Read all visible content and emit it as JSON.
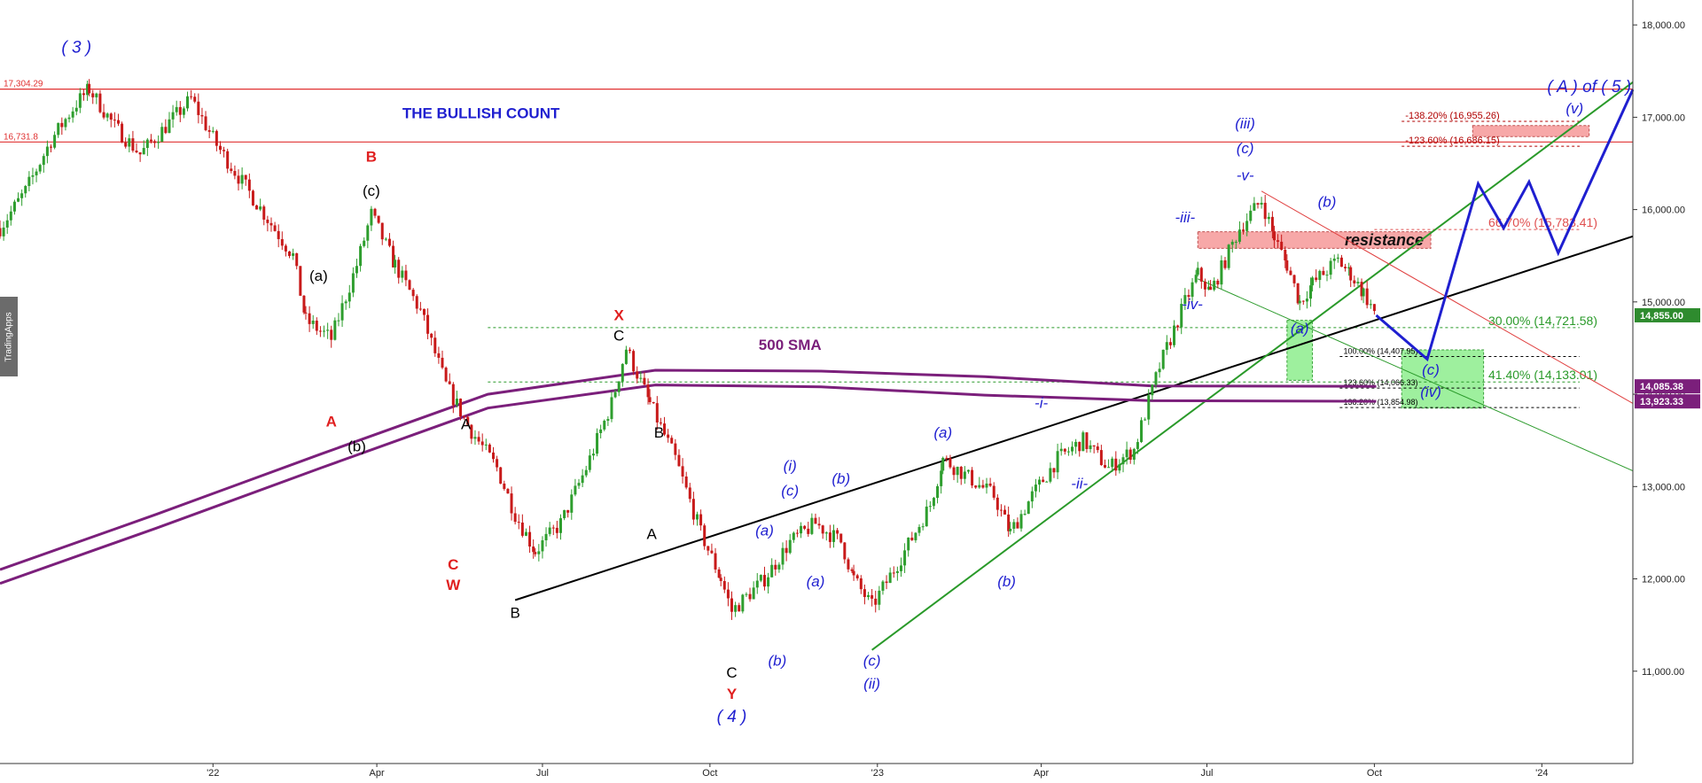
{
  "chart_data": {
    "type": "line",
    "title": "THE BULLISH COUNT",
    "watermark": "TradingApps",
    "xlabel": "",
    "ylabel": "",
    "x_ticks": [
      "'22",
      "Apr",
      "Jul",
      "Oct",
      "'23",
      "Apr",
      "Jul",
      "Oct",
      "'24"
    ],
    "x_tick_dates": [
      "2022-01-01",
      "2022-04-01",
      "2022-07-01",
      "2022-10-01",
      "2023-01-01",
      "2023-04-01",
      "2023-07-01",
      "2023-10-01",
      "2024-01-01"
    ],
    "xlim": [
      "2021-09-06",
      "2024-02-20"
    ],
    "y_ticks": [
      "11,000.00",
      "12,000.00",
      "13,000.00",
      "14,000.00",
      "15,000.00",
      "16,000.00",
      "17,000.00",
      "18,000.00"
    ],
    "ylim": [
      10000,
      18270
    ],
    "colors": {
      "up": "#2e9e2e",
      "down": "#c81a1a",
      "sma": "#7b1f7b",
      "wave_blue": "#1f1fd0",
      "wave_red": "#e02020",
      "wave_black": "#000000",
      "trend_green": "#2a9a2a",
      "resistance_fill": "#f7a8a8",
      "target_fill": "#9ef09e",
      "price_badge": "#2e8b2e",
      "sma_badge": "#7b1f7b"
    },
    "series": [
      {
        "name": "",
        "kind": "price",
        "points": [
          [
            "2021-09-06",
            15800
          ],
          [
            "2021-09-20",
            16200
          ],
          [
            "2021-10-04",
            16750
          ],
          [
            "2021-10-18",
            17150
          ],
          [
            "2021-10-25",
            17304
          ],
          [
            "2021-11-08",
            16900
          ],
          [
            "2021-11-22",
            16600
          ],
          [
            "2021-12-06",
            16900
          ],
          [
            "2021-12-20",
            17200
          ],
          [
            "2022-01-03",
            16700
          ],
          [
            "2022-01-17",
            16300
          ],
          [
            "2022-01-31",
            15900
          ],
          [
            "2022-02-14",
            15500
          ],
          [
            "2022-02-21",
            14800
          ],
          [
            "2022-03-07",
            14600
          ],
          [
            "2022-03-21",
            15400
          ],
          [
            "2022-03-29",
            15950
          ],
          [
            "2022-04-11",
            15400
          ],
          [
            "2022-04-25",
            14900
          ],
          [
            "2022-05-09",
            14100
          ],
          [
            "2022-05-23",
            13600
          ],
          [
            "2022-06-06",
            13200
          ],
          [
            "2022-06-16",
            12700
          ],
          [
            "2022-06-27",
            12300
          ],
          [
            "2022-07-11",
            12600
          ],
          [
            "2022-07-25",
            13200
          ],
          [
            "2022-08-08",
            13900
          ],
          [
            "2022-08-16",
            14500
          ],
          [
            "2022-08-29",
            13900
          ],
          [
            "2022-09-12",
            13300
          ],
          [
            "2022-09-26",
            12500
          ],
          [
            "2022-10-07",
            12000
          ],
          [
            "2022-10-13",
            11650
          ],
          [
            "2022-10-31",
            12000
          ],
          [
            "2022-11-14",
            12400
          ],
          [
            "2022-11-28",
            12600
          ],
          [
            "2022-12-12",
            12400
          ],
          [
            "2022-12-19",
            12000
          ],
          [
            "2022-12-29",
            11700
          ],
          [
            "2023-01-16",
            12300
          ],
          [
            "2023-01-30",
            12800
          ],
          [
            "2023-02-06",
            13300
          ],
          [
            "2023-02-20",
            13100
          ],
          [
            "2023-03-06",
            12900
          ],
          [
            "2023-03-15",
            12500
          ],
          [
            "2023-03-27",
            12900
          ],
          [
            "2023-04-10",
            13300
          ],
          [
            "2023-04-24",
            13500
          ],
          [
            "2023-05-08",
            13200
          ],
          [
            "2023-05-22",
            13400
          ],
          [
            "2023-06-05",
            14300
          ],
          [
            "2023-06-19",
            15000
          ],
          [
            "2023-06-26",
            15300
          ],
          [
            "2023-07-03",
            15100
          ],
          [
            "2023-07-19",
            15800
          ],
          [
            "2023-07-31",
            16100
          ],
          [
            "2023-08-07",
            15700
          ],
          [
            "2023-08-14",
            15400
          ],
          [
            "2023-08-21",
            15000
          ],
          [
            "2023-08-28",
            15200
          ],
          [
            "2023-09-11",
            15450
          ],
          [
            "2023-09-18",
            15300
          ],
          [
            "2023-09-25",
            15100
          ],
          [
            "2023-10-02",
            14855
          ]
        ]
      },
      {
        "name": "500 SMA",
        "kind": "sma",
        "points": [
          [
            "2021-09-06",
            12100
          ],
          [
            "2021-12-01",
            12700
          ],
          [
            "2022-03-01",
            13350
          ],
          [
            "2022-06-01",
            14000
          ],
          [
            "2022-09-01",
            14260
          ],
          [
            "2022-12-01",
            14250
          ],
          [
            "2023-03-01",
            14190
          ],
          [
            "2023-06-01",
            14090
          ],
          [
            "2023-10-02",
            14085
          ]
        ]
      },
      {
        "name": "",
        "kind": "sma2",
        "points": [
          [
            "2021-09-06",
            11950
          ],
          [
            "2021-12-01",
            12550
          ],
          [
            "2022-03-01",
            13200
          ],
          [
            "2022-06-01",
            13850
          ],
          [
            "2022-09-01",
            14100
          ],
          [
            "2022-12-01",
            14080
          ],
          [
            "2023-03-01",
            13990
          ],
          [
            "2023-06-01",
            13930
          ],
          [
            "2023-10-02",
            13923
          ]
        ]
      },
      {
        "name": "",
        "kind": "projection",
        "points": [
          [
            "2023-10-02",
            14855
          ],
          [
            "2023-10-30",
            14380
          ],
          [
            "2023-11-27",
            16280
          ],
          [
            "2023-12-11",
            15800
          ],
          [
            "2023-12-25",
            16300
          ],
          [
            "2024-01-10",
            15530
          ],
          [
            "2024-02-20",
            17300
          ]
        ]
      }
    ],
    "trendlines": [
      {
        "name": "black-trendline",
        "from": [
          "2022-06-16",
          11770
        ],
        "to": [
          "2024-02-20",
          15710
        ]
      },
      {
        "name": "green-trendline",
        "from": [
          "2022-12-29",
          11230
        ],
        "to": [
          "2024-02-20",
          17380
        ]
      },
      {
        "name": "red-channel-line",
        "from": [
          "2023-07-31",
          16200
        ],
        "to": [
          "2024-02-20",
          13900
        ]
      },
      {
        "name": "green-lower-line",
        "from": [
          "2023-06-26",
          15250
        ],
        "to": [
          "2024-02-20",
          13170
        ]
      }
    ],
    "horizontal_levels": [
      {
        "label": "17,304.29",
        "value": 17304.29,
        "style": "red"
      },
      {
        "label": "16,731.8",
        "value": 16731.8,
        "style": "red"
      }
    ],
    "fib_levels": [
      {
        "label": "-138.20% (16,955.26)",
        "value": 16955.26,
        "start": "2023-10-16",
        "color": "#b00000"
      },
      {
        "label": "-123.60% (16,686.15)",
        "value": 16686.15,
        "start": "2023-10-16",
        "color": "#b00000"
      },
      {
        "label": "66.70% (15,783.41)",
        "value": 15783.41,
        "start": "2023-10-01",
        "color": "#e05050"
      },
      {
        "label": "30.00% (14,721.58)",
        "value": 14721.58,
        "start": "2022-06-01",
        "color": "#2a9a2a"
      },
      {
        "label": "100.00% (14,407.95)",
        "value": 14407.95,
        "start": "2023-09-12",
        "color": "#000000"
      },
      {
        "label": "41.40% (14,133.01)",
        "value": 14133.01,
        "start": "2022-06-01",
        "color": "#2a9a2a"
      },
      {
        "label": "123.60% (14,066.33)",
        "value": 14066.33,
        "start": "2023-09-12",
        "color": "#000000"
      },
      {
        "label": "138.20% (13,854.98)",
        "value": 13854.98,
        "start": "2023-09-12",
        "color": "#000000"
      }
    ],
    "zones": [
      {
        "name": "resistance-zone",
        "label": "resistance",
        "x1": "2023-06-26",
        "x2": "2023-11-01",
        "y1": 15580,
        "y2": 15760
      },
      {
        "name": "target-zone-a",
        "label": "",
        "x1": "2023-08-14",
        "x2": "2023-08-28",
        "y1": 14150,
        "y2": 14800
      },
      {
        "name": "target-zone-iv",
        "label": "",
        "x1": "2023-10-16",
        "x2": "2023-11-30",
        "y1": 13850,
        "y2": 14480
      },
      {
        "name": "target-zone-v",
        "label": "",
        "x1": "2023-11-24",
        "x2": "2024-01-27",
        "y1": 16790,
        "y2": 16910
      }
    ],
    "annotations": [
      {
        "text": "( 3 )",
        "x": "2021-10-18",
        "y": 17700,
        "color": "blue"
      },
      {
        "text": "A",
        "x": "2022-03-07",
        "y": 13650,
        "color": "red"
      },
      {
        "text": "B",
        "x": "2022-03-29",
        "y": 16520,
        "color": "red"
      },
      {
        "text": "(c)",
        "x": "2022-03-29",
        "y": 16150,
        "color": "black"
      },
      {
        "text": "(a)",
        "x": "2022-02-28",
        "y": 15230,
        "color": "black"
      },
      {
        "text": "(b)",
        "x": "2022-03-21",
        "y": 13380,
        "color": "black"
      },
      {
        "text": "A",
        "x": "2022-05-20",
        "y": 13620,
        "color": "black"
      },
      {
        "text": "C",
        "x": "2022-05-13",
        "y": 12100,
        "color": "red"
      },
      {
        "text": "W",
        "x": "2022-05-13",
        "y": 11880,
        "color": "red"
      },
      {
        "text": "B",
        "x": "2022-06-16",
        "y": 11580,
        "color": "black"
      },
      {
        "text": "X",
        "x": "2022-08-12",
        "y": 14800,
        "color": "red"
      },
      {
        "text": "C",
        "x": "2022-08-12",
        "y": 14580,
        "color": "black"
      },
      {
        "text": "B",
        "x": "2022-09-03",
        "y": 13530,
        "color": "black"
      },
      {
        "text": "A",
        "x": "2022-08-30",
        "y": 12430,
        "color": "black"
      },
      {
        "text": "C",
        "x": "2022-10-13",
        "y": 10930,
        "color": "black"
      },
      {
        "text": "Y",
        "x": "2022-10-13",
        "y": 10700,
        "color": "red"
      },
      {
        "text": "( 4 )",
        "x": "2022-10-13",
        "y": 10450,
        "color": "blue"
      },
      {
        "text": "(a)",
        "x": "2022-10-31",
        "y": 12470,
        "color": "blue"
      },
      {
        "text": "(b)",
        "x": "2022-11-07",
        "y": 11060,
        "color": "blue"
      },
      {
        "text": "(i)",
        "x": "2022-11-14",
        "y": 13170,
        "color": "blue"
      },
      {
        "text": "(c)",
        "x": "2022-11-14",
        "y": 12900,
        "color": "blue"
      },
      {
        "text": "(a)",
        "x": "2022-11-28",
        "y": 11920,
        "color": "blue"
      },
      {
        "text": "(b)",
        "x": "2022-12-12",
        "y": 13030,
        "color": "blue"
      },
      {
        "text": "(c)",
        "x": "2022-12-29",
        "y": 11060,
        "color": "blue"
      },
      {
        "text": "(ii)",
        "x": "2022-12-29",
        "y": 10810,
        "color": "blue"
      },
      {
        "text": "(a)",
        "x": "2023-02-06",
        "y": 13530,
        "color": "blue"
      },
      {
        "text": "(b)",
        "x": "2023-03-13",
        "y": 11920,
        "color": "blue"
      },
      {
        "text": "-i-",
        "x": "2023-04-01",
        "y": 13850,
        "color": "blue"
      },
      {
        "text": "-ii-",
        "x": "2023-04-22",
        "y": 12980,
        "color": "blue"
      },
      {
        "text": "-iii-",
        "x": "2023-06-19",
        "y": 15860,
        "color": "blue"
      },
      {
        "text": "-iv-",
        "x": "2023-06-23",
        "y": 14920,
        "color": "blue"
      },
      {
        "text": "(iii)",
        "x": "2023-07-22",
        "y": 16880,
        "color": "blue"
      },
      {
        "text": "(c)",
        "x": "2023-07-22",
        "y": 16610,
        "color": "blue"
      },
      {
        "text": "-v-",
        "x": "2023-07-22",
        "y": 16320,
        "color": "blue"
      },
      {
        "text": "(a)",
        "x": "2023-08-21",
        "y": 14660,
        "color": "blue"
      },
      {
        "text": "(b)",
        "x": "2023-09-05",
        "y": 16030,
        "color": "blue"
      },
      {
        "text": "(c)",
        "x": "2023-11-01",
        "y": 14210,
        "color": "blue"
      },
      {
        "text": "(iv)",
        "x": "2023-11-01",
        "y": 13970,
        "color": "blue"
      },
      {
        "text": "(v)",
        "x": "2024-01-19",
        "y": 17040,
        "color": "blue"
      },
      {
        "text": "( A ) of ( 5 )",
        "x": "2024-01-27",
        "y": 17270,
        "color": "blue"
      },
      {
        "text": "500 SMA",
        "x": "2022-11-14",
        "y": 14480,
        "color": "purple"
      }
    ],
    "price_labels": [
      {
        "text": "14,855.00",
        "value": 14855,
        "kind": "price"
      },
      {
        "text": "14,085.38",
        "value": 14085.38,
        "kind": "sma"
      },
      {
        "text": "13,923.33",
        "value": 13923.33,
        "kind": "sma"
      }
    ],
    "grid": false,
    "legend": "none"
  }
}
